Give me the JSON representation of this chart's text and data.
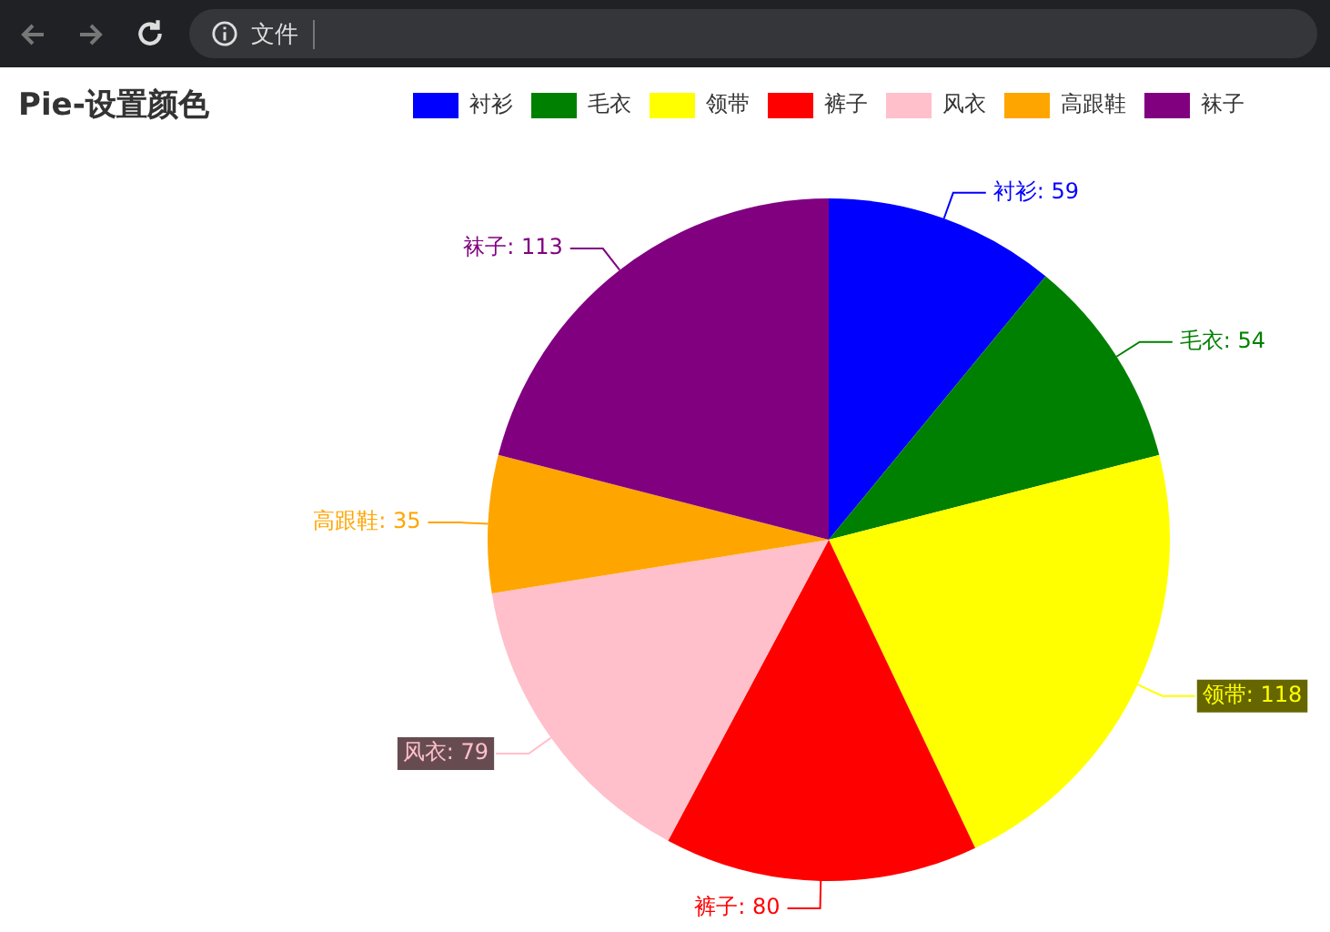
{
  "chart_data": {
    "type": "pie",
    "title": "Pie-设置颜色",
    "categories": [
      "衬衫",
      "毛衣",
      "领带",
      "裤子",
      "风衣",
      "高跟鞋",
      "袜子"
    ],
    "values": [
      59,
      54,
      118,
      80,
      79,
      35,
      113
    ],
    "colors": [
      "#0000ff",
      "#008000",
      "#ffff00",
      "#ff0000",
      "#ffc0cb",
      "#ffa500",
      "#800080"
    ],
    "legend": "top",
    "value_labels": [
      "衬衫: 59",
      "毛衣: 54",
      "领带: 118",
      "裤子: 80",
      "风衣: 79",
      "高跟鞋: 35",
      "袜子: 113"
    ],
    "annotations": [
      "文件"
    ]
  }
}
